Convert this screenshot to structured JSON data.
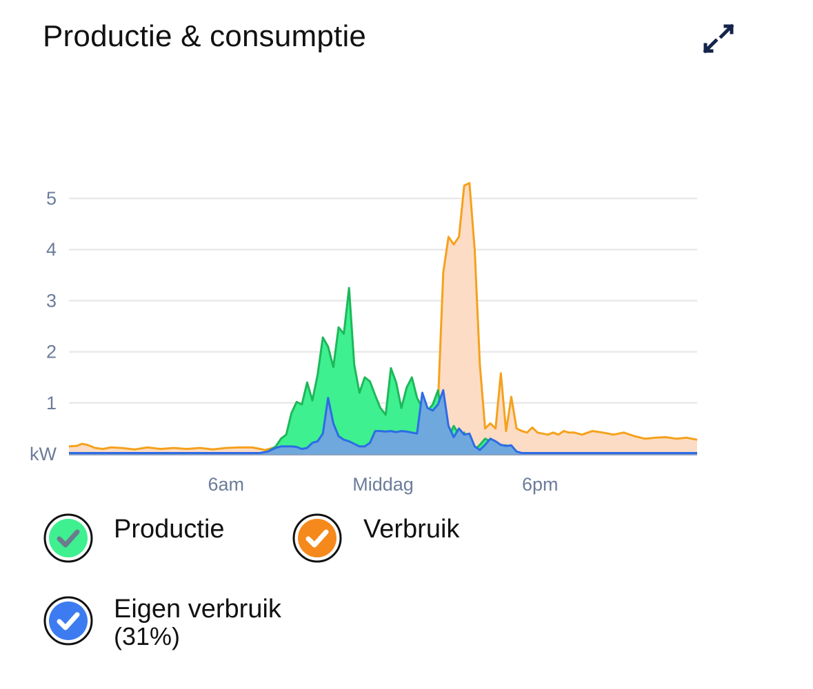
{
  "header": {
    "title": "Productie & consumptie",
    "expand_icon": "expand-icon"
  },
  "colors": {
    "production_fill": "#3ef08f",
    "production_line": "#1db85a",
    "consumption_fill": "#fcdcc4",
    "consumption_line": "#f5a11c",
    "self_fill": "#6fa8dc",
    "self_line": "#2d6be6",
    "axis_text": "#6b7c99",
    "grid": "#e9e9e9"
  },
  "chart_data": {
    "type": "area",
    "ylabel": "kW",
    "ylim": [
      0,
      5
    ],
    "yticks": [
      "5",
      "4",
      "3",
      "2",
      "1"
    ],
    "xlim": [
      0,
      24
    ],
    "xtick_labels": [
      {
        "x": 6,
        "label": "6am"
      },
      {
        "x": 12,
        "label": "Middag"
      },
      {
        "x": 18,
        "label": "6pm"
      }
    ],
    "series": [
      {
        "name": "Productie",
        "x": [
          0,
          7.3,
          7.6,
          7.9,
          8.1,
          8.3,
          8.5,
          8.7,
          8.9,
          9.1,
          9.3,
          9.5,
          9.7,
          9.9,
          10.1,
          10.3,
          10.5,
          10.7,
          10.9,
          11.1,
          11.3,
          11.5,
          11.7,
          11.9,
          12.1,
          12.3,
          12.5,
          12.7,
          12.9,
          13.1,
          13.3,
          13.5,
          13.7,
          13.9,
          14.1,
          14.3,
          14.5,
          14.7,
          14.9,
          15.1,
          15.3,
          15.5,
          15.7,
          15.9,
          16.1,
          16.3,
          16.5,
          16.7,
          16.9,
          17.1,
          17.3,
          17.5,
          17.7,
          17.9,
          18.1,
          18.3,
          18.5,
          18.7,
          18.9,
          19.1,
          19.3,
          19.5,
          20,
          24
        ],
        "values": [
          0.02,
          0.02,
          0.05,
          0.15,
          0.3,
          0.38,
          0.8,
          1.02,
          0.97,
          1.4,
          1.05,
          1.55,
          2.28,
          2.1,
          1.7,
          2.48,
          2.35,
          3.25,
          1.75,
          1.2,
          1.5,
          1.42,
          1.15,
          0.9,
          0.77,
          1.68,
          1.4,
          0.9,
          1.3,
          1.5,
          1.1,
          0.9,
          0.85,
          0.97,
          1.25,
          0.55,
          0.33,
          0.55,
          0.38,
          0.42,
          0.15,
          0.08,
          0.18,
          0.3,
          0.25,
          0.18,
          0.16,
          0.17,
          0.05,
          0.02,
          0.02,
          0.02,
          0.02,
          0.02,
          0.02,
          0.02,
          0.02,
          0.02,
          0.02,
          0.02,
          0.02,
          0.02,
          0.02,
          0.02
        ]
      },
      {
        "name": "Verbruik",
        "x": [
          0,
          0.3,
          0.5,
          0.7,
          1.0,
          1.3,
          1.6,
          2.0,
          2.5,
          3.0,
          3.5,
          4.0,
          4.5,
          5.0,
          5.5,
          6.0,
          6.5,
          7.0,
          7.5,
          8.0,
          9.0,
          10.0,
          11.0,
          12.0,
          12.5,
          13.0,
          13.3,
          13.5,
          13.7,
          13.9,
          14.1,
          14.3,
          14.5,
          14.7,
          14.9,
          15.1,
          15.3,
          15.5,
          15.7,
          15.9,
          16.1,
          16.3,
          16.5,
          16.7,
          16.9,
          17.1,
          17.3,
          17.5,
          17.7,
          17.9,
          18.1,
          18.3,
          18.5,
          18.7,
          18.9,
          19.1,
          19.3,
          19.6,
          20.0,
          20.4,
          20.8,
          21.2,
          21.6,
          22.0,
          22.4,
          22.8,
          23.2,
          23.6,
          24
        ],
        "values": [
          0.15,
          0.16,
          0.2,
          0.18,
          0.12,
          0.1,
          0.13,
          0.12,
          0.09,
          0.13,
          0.1,
          0.12,
          0.1,
          0.12,
          0.09,
          0.12,
          0.13,
          0.13,
          0.08,
          0.15,
          0.12,
          0.1,
          0.15,
          0.28,
          0.4,
          0.45,
          0.4,
          0.38,
          0.5,
          0.6,
          1.0,
          3.55,
          4.25,
          4.1,
          4.25,
          5.25,
          5.3,
          4.0,
          1.75,
          0.5,
          0.6,
          0.5,
          1.58,
          0.45,
          1.12,
          0.5,
          0.45,
          0.42,
          0.52,
          0.42,
          0.4,
          0.38,
          0.42,
          0.38,
          0.45,
          0.42,
          0.42,
          0.38,
          0.45,
          0.42,
          0.38,
          0.42,
          0.35,
          0.3,
          0.32,
          0.33,
          0.3,
          0.32,
          0.28
        ]
      },
      {
        "name": "Eigen verbruik (31%)",
        "x": [
          0,
          7.3,
          7.6,
          7.9,
          8.1,
          8.3,
          8.5,
          8.7,
          8.9,
          9.1,
          9.3,
          9.5,
          9.7,
          9.9,
          10.1,
          10.3,
          10.5,
          10.7,
          10.9,
          11.1,
          11.3,
          11.5,
          11.7,
          11.9,
          12.1,
          12.3,
          12.5,
          12.7,
          12.9,
          13.1,
          13.3,
          13.5,
          13.7,
          13.9,
          14.1,
          14.3,
          14.5,
          14.7,
          14.9,
          15.1,
          15.3,
          15.5,
          15.7,
          15.9,
          16.1,
          16.3,
          16.5,
          16.7,
          16.9,
          17.1,
          17.3,
          17.5,
          17.7,
          17.9,
          18.1,
          18.3,
          18.5,
          18.7,
          18.9,
          19.1,
          19.3,
          19.5,
          20,
          24
        ],
        "values": [
          0.02,
          0.02,
          0.05,
          0.12,
          0.15,
          0.15,
          0.15,
          0.14,
          0.1,
          0.12,
          0.22,
          0.25,
          0.4,
          1.1,
          0.6,
          0.35,
          0.28,
          0.25,
          0.2,
          0.15,
          0.15,
          0.22,
          0.45,
          0.45,
          0.44,
          0.45,
          0.43,
          0.45,
          0.44,
          0.42,
          0.4,
          1.2,
          0.9,
          0.85,
          0.97,
          1.25,
          0.55,
          0.33,
          0.5,
          0.38,
          0.4,
          0.15,
          0.08,
          0.18,
          0.3,
          0.25,
          0.18,
          0.16,
          0.17,
          0.05,
          0.02,
          0.02,
          0.02,
          0.02,
          0.02,
          0.02,
          0.02,
          0.02,
          0.02,
          0.02,
          0.02,
          0.02,
          0.02,
          0.02
        ]
      }
    ]
  },
  "legend": {
    "items": [
      {
        "label": "Productie",
        "sub": "",
        "icon": "check-icon"
      },
      {
        "label": "Verbruik",
        "sub": "",
        "icon": "check-icon"
      },
      {
        "label": "Eigen verbruik",
        "sub": "(31%)",
        "icon": "check-icon"
      }
    ]
  }
}
